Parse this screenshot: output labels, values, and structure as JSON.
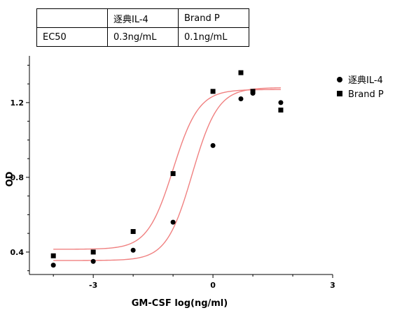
{
  "table": {
    "headers": [
      "",
      "逐典IL-4",
      "Brand P"
    ],
    "rows": [
      [
        "EC50",
        "0.3ng/mL",
        "0.1ng/mL"
      ]
    ]
  },
  "chart_data": {
    "type": "scatter",
    "title": "",
    "xlabel": "GM-CSF log(ng/ml)",
    "ylabel": "OD",
    "xlim": [
      -4.6,
      3
    ],
    "ylim": [
      0.28,
      1.45
    ],
    "xticks": [
      -3,
      0,
      3
    ],
    "xtick_labels": [
      "-3",
      "0",
      "3"
    ],
    "yticks": [
      0.4,
      0.8,
      1.2
    ],
    "ytick_labels": [
      "0.4",
      "0.8",
      "1.2"
    ],
    "grid": false,
    "legend": "top-right",
    "fit_line_color": "#f08080",
    "series": [
      {
        "name": "逐典IL-4",
        "marker": "circle",
        "color": "#000000",
        "x": [
          -4.0,
          -3.0,
          -2.0,
          -1.0,
          0.0,
          0.7,
          1.0,
          1.7
        ],
        "y": [
          0.33,
          0.35,
          0.41,
          0.56,
          0.97,
          1.22,
          1.25,
          1.2
        ],
        "fit": {
          "bottom": 0.355,
          "top": 1.28,
          "logEC50": -0.52,
          "hill": 1.35
        }
      },
      {
        "name": "Brand P",
        "marker": "square",
        "color": "#000000",
        "x": [
          -4.0,
          -3.0,
          -2.0,
          -1.0,
          0.0,
          0.7,
          1.0,
          1.7
        ],
        "y": [
          0.38,
          0.4,
          0.51,
          0.82,
          1.26,
          1.36,
          1.26,
          1.16
        ],
        "fit": {
          "bottom": 0.415,
          "top": 1.27,
          "logEC50": -1.0,
          "hill": 1.35
        }
      }
    ]
  }
}
